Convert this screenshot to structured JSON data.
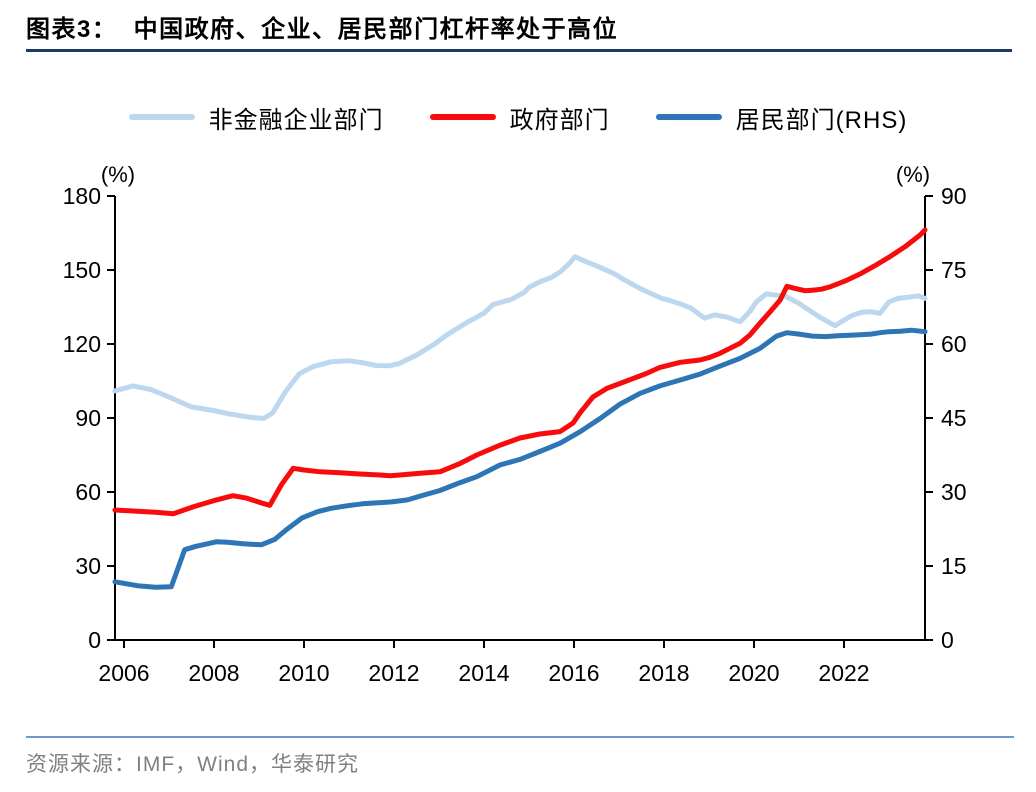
{
  "title": "图表3：  中国政府、企业、居民部门杠杆率处于高位",
  "source": "资源来源：IMF，Wind，华泰研究",
  "colors": {
    "title_underline": "#1F3864",
    "footer_divider": "#7296C8",
    "axis": "#000000",
    "source_text": "#808080",
    "nfc_line": "#BDD7EE",
    "gov_line": "#F80B0B",
    "household_line": "#2E75B6"
  },
  "legend": [
    {
      "key": "nfc",
      "label": "非金融企业部门",
      "color": "#BDD7EE"
    },
    {
      "key": "gov",
      "label": "政府部门",
      "color": "#F80B0B"
    },
    {
      "key": "household",
      "label": "居民部门(RHS)",
      "color": "#2E75B6"
    }
  ],
  "axes": {
    "left_unit": "(%)",
    "right_unit": "(%)",
    "left_ticks": [
      180,
      150,
      120,
      90,
      60,
      30,
      0
    ],
    "right_ticks": [
      90,
      75,
      60,
      45,
      30,
      15,
      0
    ],
    "x_ticks": [
      2006,
      2008,
      2010,
      2012,
      2014,
      2016,
      2018,
      2020,
      2022
    ]
  },
  "chart_data": {
    "type": "line",
    "title": "中国政府、企业、居民部门杠杆率处于高位",
    "x_range": [
      2005.8,
      2023.8
    ],
    "left_axis_range": [
      0,
      180
    ],
    "right_axis_range": [
      0,
      90
    ],
    "grid": false,
    "legend_position": "top",
    "series": [
      {
        "name": "非金融企业部门",
        "key": "nfc",
        "axis": "left",
        "color": "#BDD7EE",
        "points": [
          [
            2005.8,
            101
          ],
          [
            2006.2,
            103
          ],
          [
            2006.6,
            101.5
          ],
          [
            2007,
            98.5
          ],
          [
            2007.5,
            94.5
          ],
          [
            2008,
            93
          ],
          [
            2008.3,
            91.8
          ],
          [
            2008.8,
            90.3
          ],
          [
            2009.1,
            89.8
          ],
          [
            2009.3,
            92
          ],
          [
            2009.6,
            101
          ],
          [
            2009.9,
            108
          ],
          [
            2010.2,
            110.8
          ],
          [
            2010.6,
            112.8
          ],
          [
            2011,
            113.2
          ],
          [
            2011.3,
            112.4
          ],
          [
            2011.6,
            111.3
          ],
          [
            2011.9,
            111.2
          ],
          [
            2012.1,
            112
          ],
          [
            2012.5,
            115.5
          ],
          [
            2012.9,
            120
          ],
          [
            2013.2,
            124
          ],
          [
            2013.6,
            128.5
          ],
          [
            2014,
            132.5
          ],
          [
            2014.2,
            136
          ],
          [
            2014.6,
            138
          ],
          [
            2014.9,
            141
          ],
          [
            2015,
            143
          ],
          [
            2015.25,
            145.3
          ],
          [
            2015.5,
            147
          ],
          [
            2015.7,
            149.3
          ],
          [
            2015.9,
            152.7
          ],
          [
            2016.02,
            155.4
          ],
          [
            2016.2,
            153.9
          ],
          [
            2016.4,
            152.4
          ],
          [
            2016.6,
            150.9
          ],
          [
            2016.9,
            148.4
          ],
          [
            2017.1,
            146.2
          ],
          [
            2017.3,
            144.2
          ],
          [
            2017.5,
            142.2
          ],
          [
            2017.7,
            140.5
          ],
          [
            2017.95,
            138.5
          ],
          [
            2018.1,
            137.8
          ],
          [
            2018.4,
            136
          ],
          [
            2018.6,
            134.5
          ],
          [
            2018.9,
            130.5
          ],
          [
            2019.13,
            131.8
          ],
          [
            2019.4,
            130.9
          ],
          [
            2019.69,
            129
          ],
          [
            2019.9,
            133
          ],
          [
            2020.05,
            137
          ],
          [
            2020.27,
            140.3
          ],
          [
            2020.5,
            139.8
          ],
          [
            2020.7,
            139.3
          ],
          [
            2021,
            136.5
          ],
          [
            2021.2,
            134
          ],
          [
            2021.45,
            131
          ],
          [
            2021.8,
            127.4
          ],
          [
            2022,
            129.7
          ],
          [
            2022.2,
            131.7
          ],
          [
            2022.4,
            132.9
          ],
          [
            2022.6,
            133.1
          ],
          [
            2022.8,
            132.4
          ],
          [
            2023,
            137.1
          ],
          [
            2023.2,
            138.5
          ],
          [
            2023.4,
            138.9
          ],
          [
            2023.65,
            139.5
          ],
          [
            2023.8,
            138.5
          ]
        ]
      },
      {
        "name": "居民部门(RHS)",
        "key": "household",
        "axis": "right",
        "color": "#2E75B6",
        "points": [
          [
            2005.8,
            11.8
          ],
          [
            2006.3,
            11
          ],
          [
            2006.7,
            10.7
          ],
          [
            2007.05,
            10.8
          ],
          [
            2007.35,
            18.3
          ],
          [
            2007.6,
            19
          ],
          [
            2008.05,
            19.9
          ],
          [
            2008.3,
            19.8
          ],
          [
            2008.65,
            19.5
          ],
          [
            2009.05,
            19.3
          ],
          [
            2009.35,
            20.4
          ],
          [
            2009.6,
            22.3
          ],
          [
            2009.95,
            24.7
          ],
          [
            2010.3,
            26
          ],
          [
            2010.6,
            26.7
          ],
          [
            2010.95,
            27.2
          ],
          [
            2011.3,
            27.6
          ],
          [
            2011.6,
            27.8
          ],
          [
            2011.95,
            28
          ],
          [
            2012.3,
            28.4
          ],
          [
            2012.6,
            29.2
          ],
          [
            2013.02,
            30.3
          ],
          [
            2013.47,
            31.9
          ],
          [
            2013.84,
            33.1
          ],
          [
            2014.36,
            35.5
          ],
          [
            2014.8,
            36.6
          ],
          [
            2015.24,
            38.2
          ],
          [
            2015.69,
            39.9
          ],
          [
            2016.13,
            42.2
          ],
          [
            2016.58,
            44.9
          ],
          [
            2017.02,
            47.8
          ],
          [
            2017.47,
            50
          ],
          [
            2017.91,
            51.5
          ],
          [
            2018.36,
            52.7
          ],
          [
            2018.8,
            53.9
          ],
          [
            2019.24,
            55.5
          ],
          [
            2019.69,
            57.1
          ],
          [
            2020.13,
            59.1
          ],
          [
            2020.5,
            61.6
          ],
          [
            2020.73,
            62.3
          ],
          [
            2021,
            62
          ],
          [
            2021.3,
            61.6
          ],
          [
            2021.6,
            61.5
          ],
          [
            2021.9,
            61.7
          ],
          [
            2022.2,
            61.8
          ],
          [
            2022.6,
            62
          ],
          [
            2022.8,
            62.3
          ],
          [
            2023,
            62.5
          ],
          [
            2023.25,
            62.6
          ],
          [
            2023.5,
            62.8
          ],
          [
            2023.8,
            62.5
          ]
        ]
      },
      {
        "name": "政府部门",
        "key": "gov",
        "axis": "left",
        "color": "#F80B0B",
        "points": [
          [
            2005.8,
            52.7
          ],
          [
            2006.2,
            52.3
          ],
          [
            2006.7,
            51.8
          ],
          [
            2007.1,
            51.2
          ],
          [
            2007.55,
            54.1
          ],
          [
            2008,
            56.5
          ],
          [
            2008.42,
            58.5
          ],
          [
            2008.73,
            57.5
          ],
          [
            2009.1,
            55.3
          ],
          [
            2009.24,
            54.6
          ],
          [
            2009.5,
            63
          ],
          [
            2009.76,
            69.6
          ],
          [
            2010,
            68.9
          ],
          [
            2010.36,
            68.2
          ],
          [
            2010.8,
            67.8
          ],
          [
            2011.24,
            67.3
          ],
          [
            2011.69,
            66.9
          ],
          [
            2011.91,
            66.6
          ],
          [
            2012.13,
            66.9
          ],
          [
            2012.58,
            67.6
          ],
          [
            2013.02,
            68.2
          ],
          [
            2013.47,
            71.6
          ],
          [
            2013.84,
            75
          ],
          [
            2014.36,
            79
          ],
          [
            2014.8,
            81.9
          ],
          [
            2015.24,
            83.5
          ],
          [
            2015.69,
            84.5
          ],
          [
            2015.98,
            88
          ],
          [
            2016.13,
            92
          ],
          [
            2016.42,
            98.5
          ],
          [
            2016.73,
            102
          ],
          [
            2017.02,
            104
          ],
          [
            2017.6,
            108
          ],
          [
            2017.91,
            110.5
          ],
          [
            2018.36,
            112.6
          ],
          [
            2018.8,
            113.5
          ],
          [
            2019.02,
            114.6
          ],
          [
            2019.24,
            116.2
          ],
          [
            2019.47,
            118.3
          ],
          [
            2019.69,
            120.3
          ],
          [
            2019.91,
            123.7
          ],
          [
            2020.13,
            128.4
          ],
          [
            2020.36,
            133.1
          ],
          [
            2020.58,
            137.8
          ],
          [
            2020.73,
            143.4
          ],
          [
            2020.9,
            142.6
          ],
          [
            2021.13,
            141.6
          ],
          [
            2021.35,
            141.9
          ],
          [
            2021.5,
            142.2
          ],
          [
            2021.69,
            143.2
          ],
          [
            2022.02,
            145.5
          ],
          [
            2022.36,
            148.4
          ],
          [
            2022.69,
            151.8
          ],
          [
            2023.02,
            155.4
          ],
          [
            2023.36,
            159.5
          ],
          [
            2023.69,
            164.2
          ],
          [
            2023.8,
            166.2
          ]
        ]
      }
    ]
  }
}
